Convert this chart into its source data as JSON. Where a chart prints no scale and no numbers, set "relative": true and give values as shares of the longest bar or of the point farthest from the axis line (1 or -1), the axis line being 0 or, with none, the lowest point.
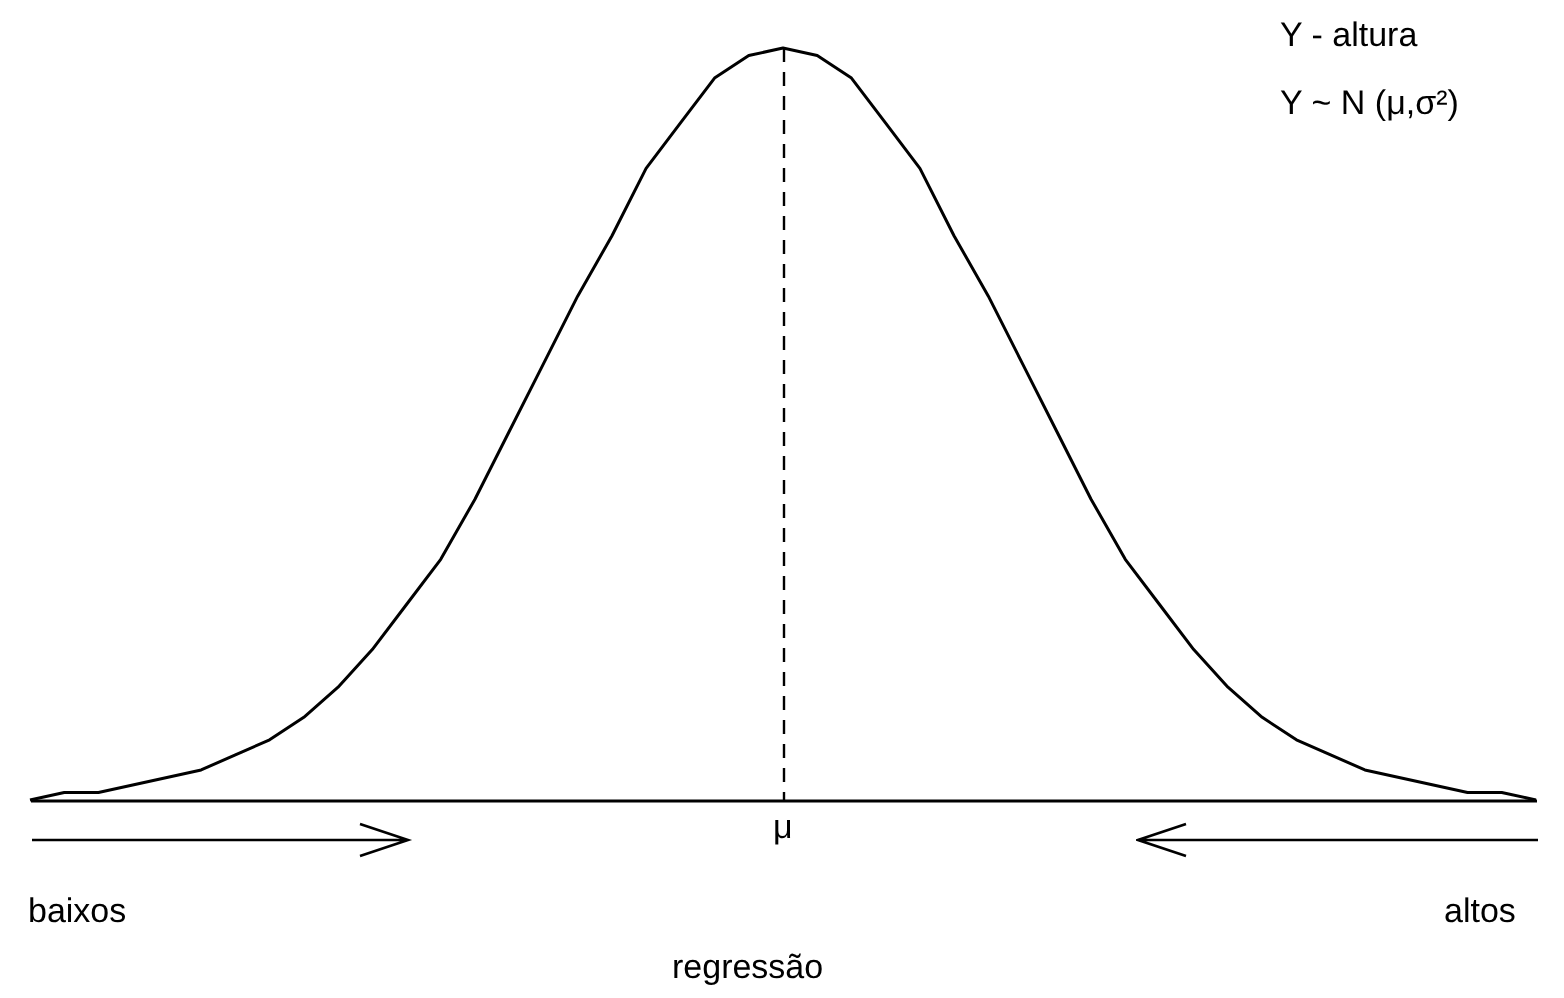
{
  "chart_data": {
    "type": "line",
    "relative": true,
    "categories": [
      null,
      null,
      null,
      null,
      null,
      null,
      null,
      null,
      null,
      null,
      null,
      null,
      null,
      null,
      null,
      null,
      null,
      null,
      null,
      null,
      null,
      null,
      null,
      null,
      null,
      null,
      null,
      null,
      null,
      null,
      null,
      null,
      null,
      null,
      null,
      null,
      null,
      null,
      null,
      null,
      null,
      null,
      null,
      null,
      null
    ],
    "series": [
      {
        "color": "#000000",
        "values": [
          0.0,
          0.01,
          0.01,
          0.02,
          0.03,
          0.04,
          0.06,
          0.08,
          0.11,
          0.15,
          0.2,
          0.26,
          0.32,
          0.4,
          0.49,
          0.58,
          0.67,
          0.75,
          0.84,
          0.9,
          0.96,
          0.99,
          1,
          0.99,
          0.96,
          0.9,
          0.84,
          0.75,
          0.67,
          0.58,
          0.49,
          0.4,
          0.32,
          0.26,
          0.2,
          0.15,
          0.11,
          0.08,
          0.06,
          0.04,
          0.03,
          0.02,
          0.01,
          0.01,
          0.0
        ]
      }
    ],
    "annotations": [
      "Y - altura",
      "Y ~ N (μ,σ²)",
      "μ",
      "baixos",
      "altos",
      "regressão"
    ]
  }
}
